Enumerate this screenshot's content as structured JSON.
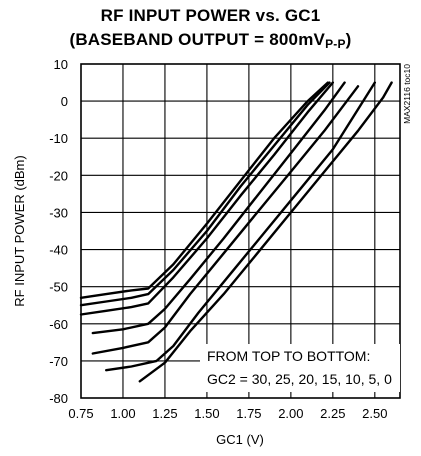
{
  "chart_data": {
    "type": "line",
    "title_line1": "RF INPUT POWER vs. GC1",
    "title_line2_prefix": "(BASEBAND OUTPUT = 800mV",
    "title_line2_sub": "P-P",
    "title_line2_suffix": ")",
    "xlabel": "GC1 (V)",
    "ylabel": "RF INPUT POWER (dBm)",
    "xlim": [
      0.75,
      2.65
    ],
    "ylim": [
      -80,
      10
    ],
    "xticks": [
      "0.75",
      "1.00",
      "1.25",
      "1.50",
      "1.75",
      "2.00",
      "2.25",
      "2.50"
    ],
    "yticks": [
      "10",
      "0",
      "-10",
      "-20",
      "-30",
      "-40",
      "-50",
      "-60",
      "-70",
      "-80"
    ],
    "grid": true,
    "annotation_line1": "FROM TOP TO BOTTOM:",
    "annotation_line2": "GC2 = 30, 25, 20, 15, 10, 5, 0",
    "watermark": "MAX2116 toc10",
    "series": [
      {
        "x": [
          0.75,
          0.9,
          1.05,
          1.15,
          1.3,
          1.5,
          1.7,
          1.9,
          2.1,
          2.22
        ],
        "y": [
          -53,
          -52,
          -51,
          -50.5,
          -44,
          -33,
          -21.5,
          -10,
          0,
          5
        ]
      },
      {
        "x": [
          0.75,
          0.9,
          1.05,
          1.15,
          1.3,
          1.5,
          1.7,
          1.9,
          2.1,
          2.23
        ],
        "y": [
          -55,
          -54,
          -53,
          -52,
          -45.5,
          -35,
          -23,
          -12,
          -1,
          5
        ]
      },
      {
        "x": [
          0.75,
          0.9,
          1.05,
          1.15,
          1.3,
          1.5,
          1.7,
          1.9,
          2.1,
          2.25
        ],
        "y": [
          -57.5,
          -56.5,
          -55.5,
          -54.5,
          -47.5,
          -37,
          -25.5,
          -14.5,
          -3,
          5
        ]
      },
      {
        "x": [
          0.82,
          1.0,
          1.15,
          1.25,
          1.4,
          1.6,
          1.8,
          2.0,
          2.2,
          2.32
        ],
        "y": [
          -62.5,
          -61.5,
          -60,
          -56,
          -48,
          -37,
          -25.5,
          -14,
          -2.5,
          5
        ]
      },
      {
        "x": [
          0.82,
          1.0,
          1.15,
          1.25,
          1.4,
          1.6,
          1.8,
          2.0,
          2.2,
          2.4
        ],
        "y": [
          -68,
          -66.5,
          -65,
          -61,
          -52,
          -41,
          -30,
          -19,
          -8,
          4
        ]
      },
      {
        "x": [
          0.9,
          1.05,
          1.2,
          1.3,
          1.45,
          1.65,
          1.85,
          2.05,
          2.25,
          2.5
        ],
        "y": [
          -72.5,
          -71.5,
          -70,
          -66,
          -57,
          -46,
          -35,
          -24,
          -13,
          5
        ]
      },
      {
        "x": [
          1.1,
          1.25,
          1.4,
          1.6,
          1.8,
          2.0,
          2.2,
          2.4,
          2.55,
          2.6
        ],
        "y": [
          -75.5,
          -70.5,
          -62,
          -52,
          -41,
          -30,
          -19,
          -8,
          1,
          5
        ]
      }
    ]
  }
}
